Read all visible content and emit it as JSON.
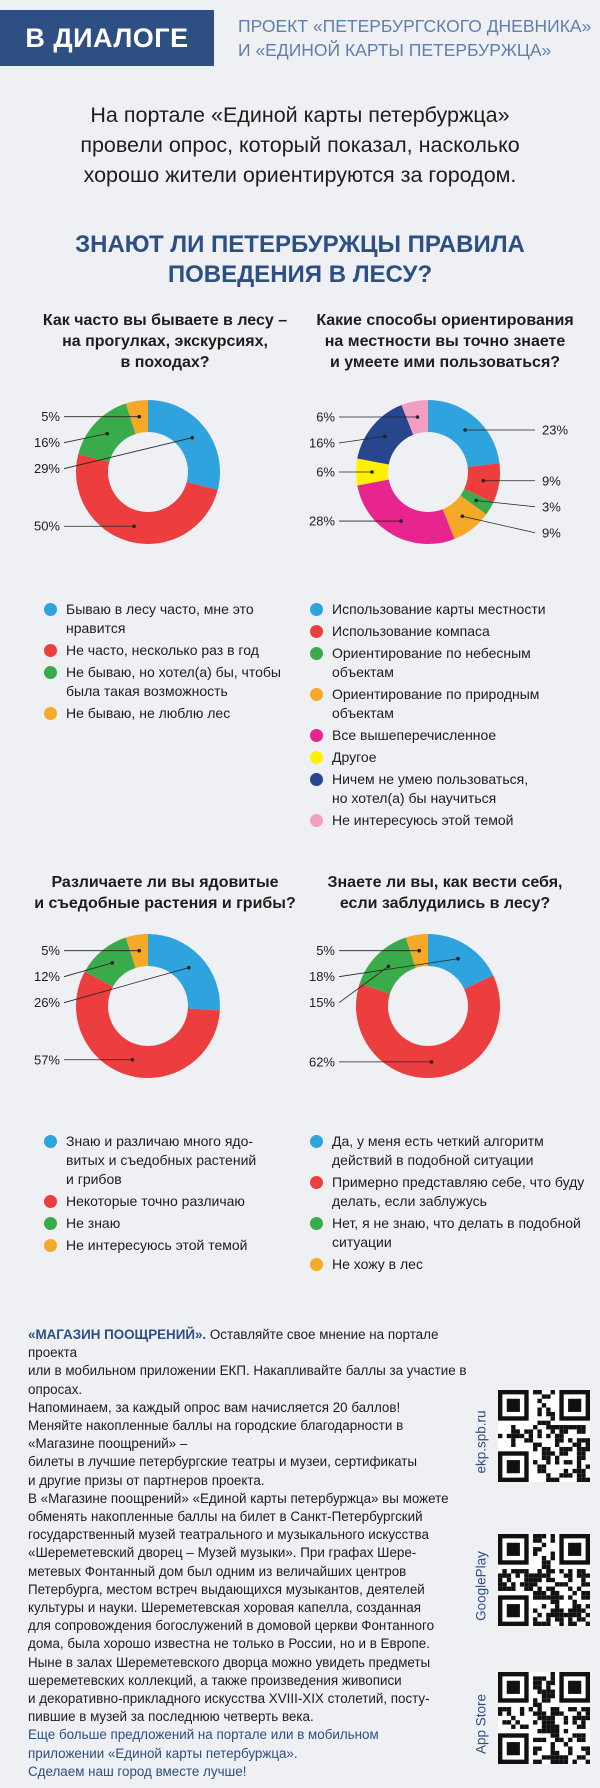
{
  "header": {
    "badge": "В ДИАЛОГЕ",
    "project_line1": "ПРОЕКТ «ПЕТЕРБУРГСКОГО ДНЕВНИКА»",
    "project_line2": "И «ЕДИНОЙ КАРТЫ ПЕТЕРБУРЖЦА»"
  },
  "intro": {
    "line1": "На портале «Единой карты петербуржца»",
    "line2": "провели опрос, который показал, насколько",
    "line3": "хорошо жители ориентируются за городом."
  },
  "main_title": {
    "line1": "ЗНАЮТ ЛИ ПЕТЕРБУРЖЦЫ ПРАВИЛА",
    "line2": "ПОВЕДЕНИЯ В ЛЕСУ?"
  },
  "colors": {
    "blue": "#2ea3dd",
    "red": "#ec3e3e",
    "green": "#3aab4a",
    "orange": "#f6a828",
    "magenta": "#e8258f",
    "yellow": "#fff200",
    "darkblue": "#27468e",
    "pink": "#f59ec4",
    "brand": "#2d4f83"
  },
  "chart_data": [
    {
      "type": "pie",
      "title_lines": [
        "Как часто вы бываете в лесу –",
        "на прогулках, экскурсиях,",
        "в походах?"
      ],
      "series": [
        {
          "name_lines": [
            "Бываю в лесу часто, мне это",
            "нравится"
          ],
          "value": 29,
          "label": "29%",
          "color": "#2ea3dd"
        },
        {
          "name_lines": [
            "Не часто, несколько раз в год"
          ],
          "value": 50,
          "label": "50%",
          "color": "#ec3e3e"
        },
        {
          "name_lines": [
            "Не бываю, но хотел(а) бы, чтобы",
            "была такая возможность"
          ],
          "value": 16,
          "label": "16%",
          "color": "#3aab4a"
        },
        {
          "name_lines": [
            "Не бываю, не люблю лес"
          ],
          "value": 5,
          "label": "5%",
          "color": "#f6a828"
        }
      ]
    },
    {
      "type": "pie",
      "title_lines": [
        "Какие способы ориентирования",
        "на местности вы точно знаете",
        "и умеете ими пользоваться?"
      ],
      "series": [
        {
          "name_lines": [
            "Использование карты местности"
          ],
          "value": 23,
          "label": "23%",
          "color": "#2ea3dd"
        },
        {
          "name_lines": [
            "Использование компаса"
          ],
          "value": 9,
          "label": "9%",
          "color": "#ec3e3e"
        },
        {
          "name_lines": [
            "Ориентирование по небесным",
            "объектам"
          ],
          "value": 3,
          "label": "3%",
          "color": "#3aab4a"
        },
        {
          "name_lines": [
            "Ориентирование по природным",
            "объектам"
          ],
          "value": 9,
          "label": "9%",
          "color": "#f6a828"
        },
        {
          "name_lines": [
            "Все вышеперечисленное"
          ],
          "value": 28,
          "label": "28%",
          "color": "#e8258f"
        },
        {
          "name_lines": [
            "Другое"
          ],
          "value": 6,
          "label": "6%",
          "color": "#fff200"
        },
        {
          "name_lines": [
            "Ничем не умею пользоваться,",
            "но хотел(а) бы научиться"
          ],
          "value": 16,
          "label": "16%",
          "color": "#27468e"
        },
        {
          "name_lines": [
            "Не интересуюсь этой темой"
          ],
          "value": 6,
          "label": "6%",
          "color": "#f59ec4"
        }
      ]
    },
    {
      "type": "pie",
      "title_lines": [
        "Различаете ли вы ядовитые",
        "и съедобные растения и грибы?"
      ],
      "series": [
        {
          "name_lines": [
            "Знаю и различаю много ядо-",
            "витых и съедобных растений",
            "и грибов"
          ],
          "value": 26,
          "label": "26%",
          "color": "#2ea3dd"
        },
        {
          "name_lines": [
            "Некоторые точно различаю"
          ],
          "value": 57,
          "label": "57%",
          "color": "#ec3e3e"
        },
        {
          "name_lines": [
            "Не знаю"
          ],
          "value": 12,
          "label": "12%",
          "color": "#3aab4a"
        },
        {
          "name_lines": [
            "Не интересуюсь этой темой"
          ],
          "value": 5,
          "label": "5%",
          "color": "#f6a828"
        }
      ]
    },
    {
      "type": "pie",
      "title_lines": [
        "Знаете ли вы, как вести себя,",
        "если заблудились в лесу?"
      ],
      "series": [
        {
          "name_lines": [
            "Да, у меня есть четкий алгоритм",
            "действий в подобной ситуации"
          ],
          "value": 18,
          "label": "18%",
          "color": "#2ea3dd"
        },
        {
          "name_lines": [
            "Примерно представляю себе, что буду",
            "делать, если заблужусь"
          ],
          "value": 62,
          "label": "62%",
          "color": "#ec3e3e"
        },
        {
          "name_lines": [
            "Нет, я не знаю, что делать в подобной",
            "ситуации"
          ],
          "value": 15,
          "label": "15%",
          "color": "#3aab4a"
        },
        {
          "name_lines": [
            "Не хожу в лес"
          ],
          "value": 5,
          "label": "5%",
          "color": "#f6a828"
        }
      ]
    }
  ],
  "footer": {
    "lead": "«МАГАЗИН ПООЩРЕНИЙ».",
    "lines": [
      " Оставляйте свое мнение на портале проекта",
      "или в мобильном приложении ЕКП. Накапливайте баллы за участие в опросах.",
      "Напоминаем, за каждый опрос вам начисляется 20 баллов!",
      "Меняйте накопленные баллы на городские благодарности в «Магазине поощрений» –",
      "билеты в лучшие петербургские театры и музеи, сертификаты",
      "и другие призы от партнеров проекта.",
      "В «Магазине поощрений» «Единой карты петербуржца» вы можете",
      "обменять накопленные баллы на билет в Санкт-Петербургский",
      "государственный музей театрального и музыкального искусства",
      "«Шереметевский дворец – Музей музыки». При графах Шере-",
      "метевых Фонтанный дом был одним из величайших центров",
      "Петербурга, местом встреч выдающихся музыкантов, деятелей",
      "культуры и науки. Шереметевская хоровая капелла, созданная",
      "для сопровождения богослужений в домовой церкви Фонтанного",
      "дома, была хорошо известна не только в России, но и в Европе.",
      "Ныне в залах Шереметевского дворца можно увидеть предметы",
      "шереметевских коллекций, а также произведения живописи",
      "и декоративно-прикладного искусства XVIII-XIX столетий, посту-",
      "пившие в музей за последнюю четверть века."
    ],
    "closing": [
      "Еще больше предложений на портале или в мобильном",
      "приложении «Единой карты петербуржца».",
      "Сделаем наш город вместе лучше!"
    ]
  },
  "qr": [
    {
      "label": "ekp.spb.ru"
    },
    {
      "label": "GooglePlay"
    },
    {
      "label": "App Store"
    }
  ]
}
